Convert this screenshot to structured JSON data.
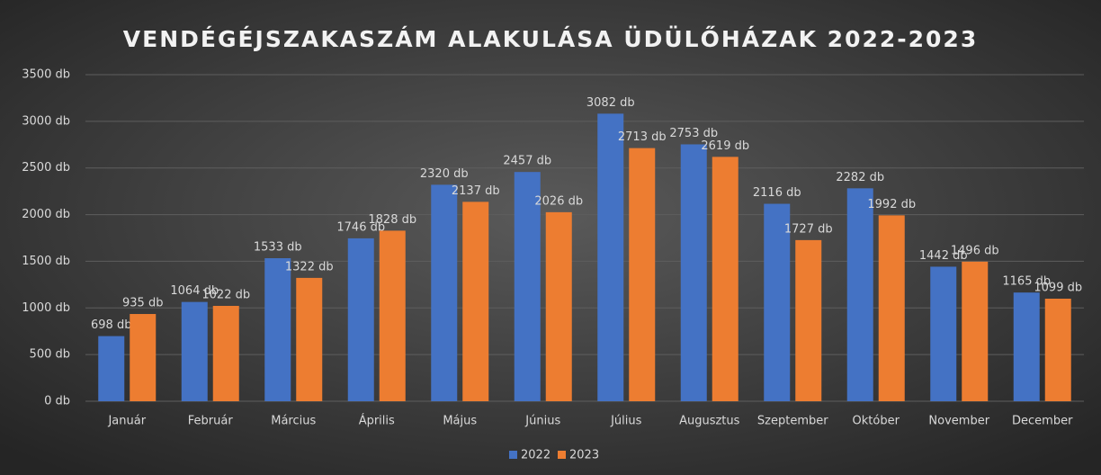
{
  "chart_data": {
    "type": "bar",
    "title": "VENDÉGÉJSZAKASZÁM ALAKULÁSA ÜDÜLŐHÁZAK 2022-2023",
    "categories": [
      "Január",
      "Február",
      "Március",
      "Április",
      "Május",
      "Június",
      "Július",
      "Augusztus",
      "Szeptember",
      "Október",
      "November",
      "December"
    ],
    "series": [
      {
        "name": "2022",
        "color": "#4472c4",
        "values": [
          698,
          1064,
          1533,
          1746,
          2320,
          2457,
          3082,
          2753,
          2116,
          2282,
          1442,
          1165
        ],
        "value_labels": [
          "698 db",
          "1064 db",
          "1533 db",
          "1746 db",
          "2320 db",
          "2457 db",
          "3082 db",
          "2753 db",
          "2116 db",
          "2282 db",
          "1442 db",
          "1165 db"
        ]
      },
      {
        "name": "2023",
        "color": "#ed7d31",
        "values": [
          935,
          1022,
          1322,
          1828,
          2137,
          2026,
          2713,
          2619,
          1727,
          1992,
          1496,
          1099
        ],
        "value_labels": [
          "935 db",
          "1022 db",
          "1322 db",
          "1828 db",
          "2137 db",
          "2026 db",
          "2713 db",
          "2619 db",
          "1727 db",
          "1992 db",
          "1496 db",
          "1099 db"
        ]
      }
    ],
    "ylim": [
      0,
      3500
    ],
    "yticks": [
      {
        "value": 0,
        "label": "0 db"
      },
      {
        "value": 500,
        "label": "500 db"
      },
      {
        "value": 1000,
        "label": "1000 db"
      },
      {
        "value": 1500,
        "label": "1500 db"
      },
      {
        "value": 2000,
        "label": "2000 db"
      },
      {
        "value": 2500,
        "label": "2500 db"
      },
      {
        "value": 3000,
        "label": "3000 db"
      },
      {
        "value": 3500,
        "label": "3500 db"
      }
    ],
    "grid": true,
    "legend": "bottom"
  }
}
